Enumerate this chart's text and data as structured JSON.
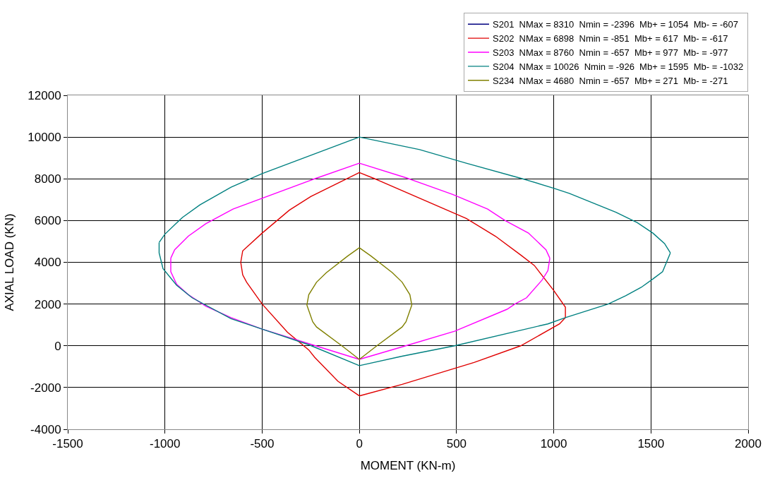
{
  "chart_data": {
    "type": "line",
    "xlabel": "MOMENT (KN-m)",
    "ylabel": "AXIAL LOAD (KN)",
    "xlim": [
      -1500,
      2000
    ],
    "xticks": [
      -1500,
      -1000,
      -500,
      0,
      500,
      1000,
      1500,
      2000
    ],
    "ylim": [
      -4000,
      12000
    ],
    "yticks": [
      -4000,
      -2000,
      0,
      2000,
      4000,
      6000,
      8000,
      10000,
      12000
    ],
    "grid": true,
    "legend": "top right",
    "marker": "none",
    "line_style": "solid",
    "series": [
      {
        "name": "S201  NMax = 8310  Nmin = -2396  Mb+ = 1054  Mb- = -607",
        "color": "#000080",
        "values": [
          null
        ]
      },
      {
        "name": "S202  NMax = 6898  Nmin = -851  Mb+ = 617  Mb- = -617",
        "color": "#e00000",
        "x": [
          0,
          -250,
          -360,
          -500,
          -600,
          -610,
          null,
          -610,
          -600,
          -580,
          -500,
          -370,
          -260,
          -230,
          -110,
          0,
          null,
          0,
          220,
          590,
          830,
          1030,
          1060,
          null,
          1060,
          1060,
          1000,
          900,
          830,
          700,
          550,
          80,
          0
        ],
        "values": [
          8300,
          7150,
          6500,
          5400,
          4550,
          4000,
          null,
          4000,
          3400,
          3050,
          2000,
          650,
          -200,
          -550,
          -1700,
          -2400,
          null,
          -2400,
          -1850,
          -800,
          0,
          1050,
          1350,
          null,
          1350,
          1850,
          2650,
          3850,
          4350,
          5250,
          6100,
          8000,
          8300
        ]
      },
      {
        "name": "S203  NMax = 8760  Nmin = -657  Mb+ = 977  Mb- = -977",
        "color": "#ff00ff",
        "x": [
          0,
          -230,
          -650,
          -790,
          -880,
          -950,
          -970,
          null,
          -970,
          -970,
          -940,
          -880,
          -790,
          -660,
          -500,
          -260,
          0,
          null,
          0,
          220,
          490,
          760,
          800,
          860,
          940,
          970,
          980,
          null,
          980,
          960,
          870,
          750,
          660,
          480,
          240,
          0
        ],
        "values": [
          8750,
          8000,
          6550,
          5850,
          5250,
          4600,
          4200,
          null,
          4200,
          3550,
          2950,
          2450,
          1900,
          1350,
          800,
          100,
          -650,
          null,
          -650,
          -50,
          700,
          1750,
          2000,
          2300,
          3150,
          3600,
          4200,
          null,
          4200,
          4600,
          5400,
          6000,
          6550,
          7250,
          8050,
          8750
        ]
      },
      {
        "name": "S204  NMax = 10026  Nmin = -926  Mb+ = 1595  Mb- = -1032",
        "color": "#008080",
        "x": [
          0,
          -500,
          -660,
          -820,
          -910,
          -1000,
          -1030,
          null,
          -1030,
          -1030,
          -1010,
          -940,
          -860,
          -660,
          -500,
          -260,
          0,
          null,
          0,
          220,
          490,
          970,
          1060,
          1280,
          1370,
          1450,
          1510,
          1560,
          1600,
          null,
          1600,
          1570,
          1510,
          1430,
          1320,
          1080,
          1000,
          840,
          550,
          310,
          0
        ],
        "values": [
          10000,
          8250,
          7600,
          6750,
          6150,
          5350,
          4950,
          null,
          4950,
          4450,
          3700,
          2900,
          2300,
          1300,
          800,
          50,
          -950,
          null,
          -950,
          -500,
          0,
          1050,
          1350,
          2000,
          2400,
          2800,
          3200,
          3550,
          4450,
          null,
          4450,
          4900,
          5400,
          5900,
          6400,
          7300,
          7550,
          8000,
          8750,
          9400,
          10000
        ]
      },
      {
        "name": "S234  NMax = 4680  Nmin = -657  Mb+ = 271  Mb- = -271",
        "color": "#808000",
        "x": [
          0,
          -60,
          -170,
          -220,
          -260,
          -270,
          null,
          -270,
          -240,
          -220,
          -90,
          0,
          null,
          0,
          90,
          220,
          240,
          270,
          null,
          270,
          260,
          220,
          170,
          60,
          0
        ],
        "values": [
          4700,
          4300,
          3500,
          3050,
          2450,
          1950,
          null,
          1950,
          1150,
          900,
          0,
          -650,
          null,
          -650,
          0,
          900,
          1150,
          1950,
          null,
          1950,
          2450,
          3050,
          3500,
          4300,
          4700
        ]
      }
    ]
  }
}
